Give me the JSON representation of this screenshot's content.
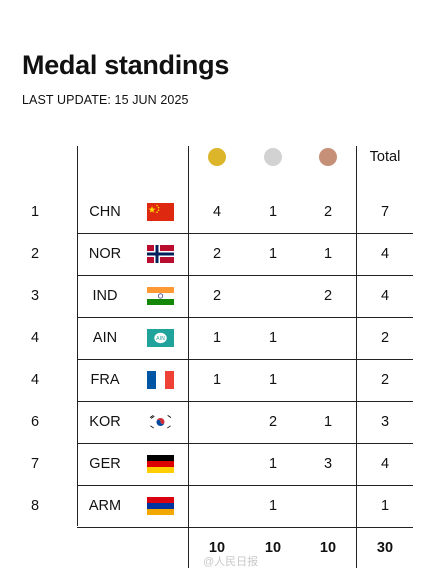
{
  "title": "Medal standings",
  "subtitle": "LAST UPDATE: 15 JUN 2025",
  "colors": {
    "gold": "#dcb52a",
    "silver": "#d2d2d2",
    "bronze": "#c68f77"
  },
  "header": {
    "total": "Total"
  },
  "rows": [
    {
      "rank": "1",
      "country": "CHN",
      "flag": "china-flag-icon",
      "gold": "4",
      "silver": "1",
      "bronze": "2",
      "total": "7"
    },
    {
      "rank": "2",
      "country": "NOR",
      "flag": "norway-flag-icon",
      "gold": "2",
      "silver": "1",
      "bronze": "1",
      "total": "4"
    },
    {
      "rank": "3",
      "country": "IND",
      "flag": "india-flag-icon",
      "gold": "2",
      "silver": "",
      "bronze": "2",
      "total": "4"
    },
    {
      "rank": "4",
      "country": "AIN",
      "flag": "ain-flag-icon",
      "gold": "1",
      "silver": "1",
      "bronze": "",
      "total": "2"
    },
    {
      "rank": "4",
      "country": "FRA",
      "flag": "france-flag-icon",
      "gold": "1",
      "silver": "1",
      "bronze": "",
      "total": "2"
    },
    {
      "rank": "6",
      "country": "KOR",
      "flag": "korea-flag-icon",
      "gold": "",
      "silver": "2",
      "bronze": "1",
      "total": "3"
    },
    {
      "rank": "7",
      "country": "GER",
      "flag": "germany-flag-icon",
      "gold": "",
      "silver": "1",
      "bronze": "3",
      "total": "4"
    },
    {
      "rank": "8",
      "country": "ARM",
      "flag": "armenia-flag-icon",
      "gold": "",
      "silver": "1",
      "bronze": "",
      "total": "1"
    }
  ],
  "totals": {
    "gold": "10",
    "silver": "10",
    "bronze": "10",
    "total": "30"
  },
  "watermark": "@人民日报"
}
